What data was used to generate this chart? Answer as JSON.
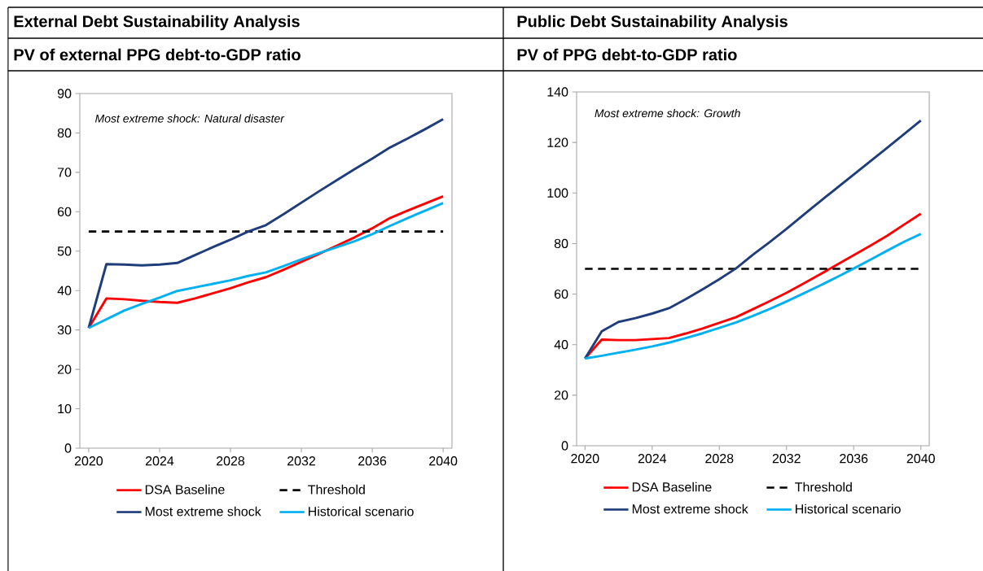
{
  "chart_data": [
    {
      "type": "line",
      "title": "External Debt Sustainability Analysis",
      "subtitle": "PV of external PPG debt-to-GDP ratio",
      "annotations": [
        "Most extreme shock: Natural disaster"
      ],
      "x": [
        2020,
        2021,
        2022,
        2023,
        2024,
        2025,
        2026,
        2027,
        2028,
        2029,
        2030,
        2031,
        2032,
        2033,
        2034,
        2035,
        2036,
        2037,
        2038,
        2039,
        2040
      ],
      "series": [
        {
          "name": "DSA Baseline",
          "color": "#ff0000",
          "values": [
            30.5,
            38.0,
            37.8,
            37.4,
            37.1,
            36.9,
            38.0,
            39.3,
            40.6,
            42.1,
            43.4,
            45.3,
            47.3,
            49.3,
            51.4,
            53.5,
            55.8,
            58.4,
            60.3,
            62.1,
            63.9
          ]
        },
        {
          "name": "Most extreme shock",
          "color": "#1f3d7a",
          "values": [
            30.5,
            46.7,
            46.6,
            46.4,
            46.6,
            47.0,
            49.0,
            51.0,
            52.9,
            55.0,
            56.6,
            59.4,
            62.3,
            65.2,
            68.0,
            70.8,
            73.5,
            76.3,
            78.6,
            81.0,
            83.5
          ]
        },
        {
          "name": "Historical scenario",
          "color": "#00b0f0",
          "values": [
            30.5,
            32.7,
            34.9,
            36.6,
            38.2,
            39.9,
            40.8,
            41.7,
            42.6,
            43.7,
            44.6,
            46.2,
            47.9,
            49.5,
            51.0,
            52.5,
            54.3,
            56.4,
            58.4,
            60.3,
            62.2
          ]
        }
      ],
      "ref_lines": [
        {
          "axis": "y",
          "value": 55,
          "label": "Threshold",
          "color": "#000000",
          "line_style": "dashed"
        }
      ],
      "xlim": [
        2019.5,
        2040.5
      ],
      "xticks": [
        2020,
        2024,
        2028,
        2032,
        2036,
        2040
      ],
      "ylim": [
        0,
        90
      ],
      "yticks": [
        0,
        10,
        20,
        30,
        40,
        50,
        60,
        70,
        80,
        90
      ],
      "legend": "bottom"
    },
    {
      "type": "line",
      "title": "Public Debt Sustainability Analysis",
      "subtitle": "PV of PPG debt-to-GDP ratio",
      "annotations": [
        "Most extreme shock: Growth"
      ],
      "x": [
        2020,
        2021,
        2022,
        2023,
        2024,
        2025,
        2026,
        2027,
        2028,
        2029,
        2030,
        2031,
        2032,
        2033,
        2034,
        2035,
        2036,
        2037,
        2038,
        2039,
        2040
      ],
      "series": [
        {
          "name": "DSA Baseline",
          "color": "#ff0000",
          "values": [
            34.5,
            42.0,
            41.8,
            41.8,
            42.2,
            42.6,
            44.4,
            46.4,
            48.6,
            50.9,
            54.0,
            57.2,
            60.5,
            64.1,
            67.8,
            71.6,
            75.4,
            79.2,
            83.1,
            87.5,
            91.8
          ]
        },
        {
          "name": "Most extreme shock",
          "color": "#1f3d7a",
          "values": [
            34.5,
            45.3,
            49.0,
            50.5,
            52.3,
            54.4,
            58.0,
            61.9,
            65.9,
            70.2,
            75.6,
            80.6,
            85.8,
            91.3,
            96.7,
            102.0,
            107.3,
            112.6,
            117.9,
            123.3,
            128.7
          ]
        },
        {
          "name": "Historical scenario",
          "color": "#00b0f0",
          "values": [
            34.5,
            35.6,
            36.8,
            38.0,
            39.3,
            40.8,
            42.6,
            44.5,
            46.6,
            48.8,
            51.4,
            54.1,
            57.1,
            60.2,
            63.4,
            66.7,
            70.1,
            73.6,
            77.2,
            80.7,
            83.8
          ]
        }
      ],
      "ref_lines": [
        {
          "axis": "y",
          "value": 70,
          "label": "Threshold",
          "color": "#000000",
          "line_style": "dashed"
        }
      ],
      "xlim": [
        2019.5,
        2040.5
      ],
      "xticks": [
        2020,
        2024,
        2028,
        2032,
        2036,
        2040
      ],
      "ylim": [
        0,
        140
      ],
      "yticks": [
        0,
        20,
        40,
        60,
        80,
        100,
        120,
        140
      ],
      "legend": "bottom"
    }
  ]
}
